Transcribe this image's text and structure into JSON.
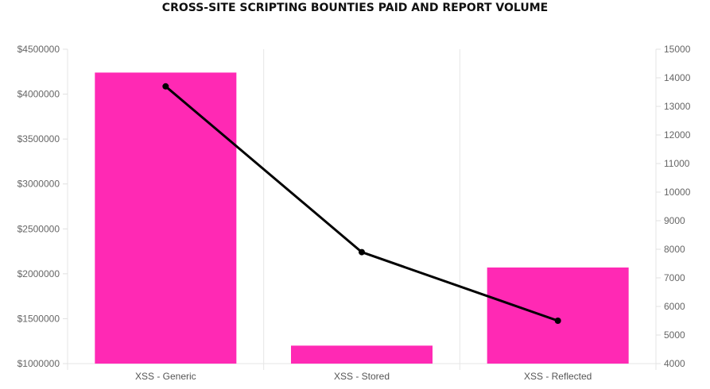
{
  "chart_data": {
    "type": "bar",
    "title": "CROSS-SITE SCRIPTING BOUNTIES PAID AND REPORT VOLUME",
    "categories": [
      "XSS - Generic",
      "XSS - Stored",
      "XSS - Reflected"
    ],
    "series": [
      {
        "type": "bar",
        "axis": "left",
        "values": [
          4240000,
          1200000,
          2070000
        ],
        "color": "#ff29b4"
      },
      {
        "type": "line",
        "axis": "right",
        "values": [
          13700,
          7900,
          5500
        ],
        "color": "#000000"
      }
    ],
    "y_left": {
      "lim": [
        1000000,
        4500000
      ],
      "ticks": [
        "$1000000",
        "$1500000",
        "$2000000",
        "$2500000",
        "$3000000",
        "$3500000",
        "$4000000",
        "$4500000"
      ],
      "tick_values": [
        1000000,
        1500000,
        2000000,
        2500000,
        3000000,
        3500000,
        4000000,
        4500000
      ]
    },
    "y_right": {
      "lim": [
        4000,
        15000
      ],
      "ticks": [
        "4000",
        "5000",
        "6000",
        "7000",
        "8000",
        "9000",
        "10000",
        "11000",
        "12000",
        "13000",
        "14000",
        "15000"
      ],
      "tick_values": [
        4000,
        5000,
        6000,
        7000,
        8000,
        9000,
        10000,
        11000,
        12000,
        13000,
        14000,
        15000
      ]
    },
    "grid": "vertical category separators",
    "legend": "none"
  }
}
